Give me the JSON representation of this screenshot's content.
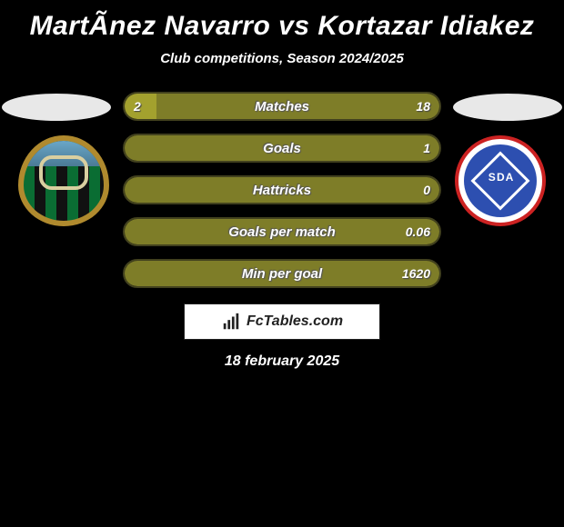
{
  "title": "MartÃ­nez Navarro vs Kortazar Idiakez",
  "subtitle": "Club competitions, Season 2024/2025",
  "date": "18 february 2025",
  "branding": "FcTables.com",
  "colors": {
    "background": "#000000",
    "bar_left": "#a3a12e",
    "bar_right": "#7e7d28",
    "bar_border": "#42411e",
    "text": "#ffffff"
  },
  "bars": [
    {
      "label": "Matches",
      "left_value": "2",
      "right_value": "18",
      "left_num": 2,
      "right_num": 18,
      "left_pct": 10,
      "right_pct": 90
    },
    {
      "label": "Goals",
      "left_value": "",
      "right_value": "1",
      "left_num": 0,
      "right_num": 1,
      "left_pct": 0,
      "right_pct": 100
    },
    {
      "label": "Hattricks",
      "left_value": "",
      "right_value": "0",
      "left_num": 0,
      "right_num": 0,
      "left_pct": 0,
      "right_pct": 100
    },
    {
      "label": "Goals per match",
      "left_value": "",
      "right_value": "0.06",
      "left_num": 0,
      "right_num": 0.06,
      "left_pct": 0,
      "right_pct": 100
    },
    {
      "label": "Min per goal",
      "left_value": "",
      "right_value": "1620",
      "left_num": 0,
      "right_num": 1620,
      "left_pct": 0,
      "right_pct": 100
    }
  ],
  "crests": {
    "left": {
      "name": "Sestao River",
      "style": "green-black-stripes-gold-ring"
    },
    "right": {
      "name": "SD Amorebieta",
      "style": "blue-circle-white-diamond"
    }
  }
}
